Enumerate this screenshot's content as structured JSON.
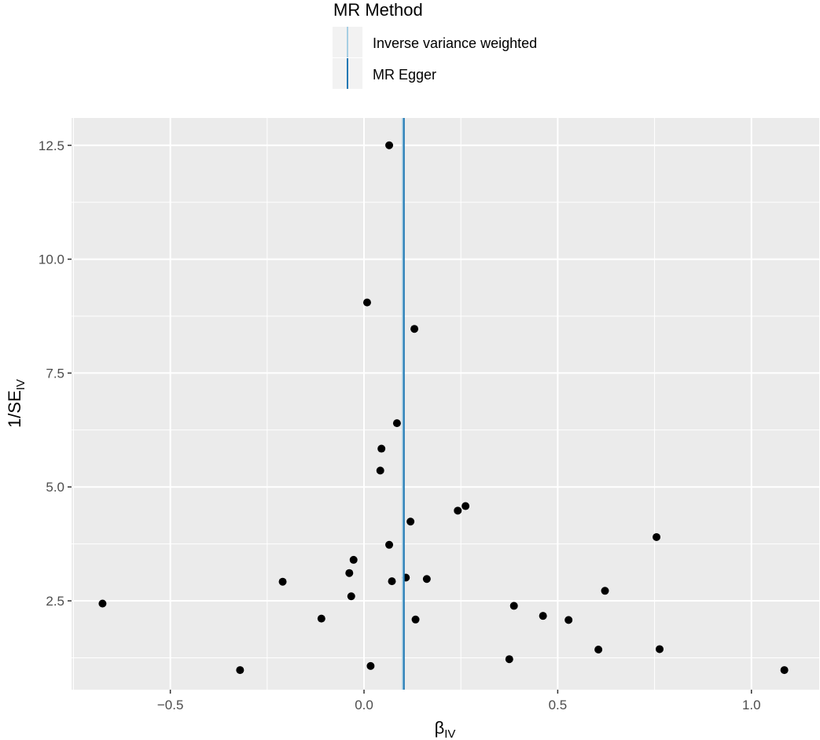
{
  "chart_data": {
    "type": "scatter",
    "title": "",
    "xlabel": "β",
    "xlabel_sub": "IV",
    "ylabel": "1/SE",
    "ylabel_sub": "IV",
    "xlim": [
      -0.755,
      1.175
    ],
    "ylim": [
      0.55,
      13.1
    ],
    "x_ticks": [
      -0.5,
      0.0,
      0.5,
      1.0
    ],
    "x_tick_labels": [
      "−0.5",
      "0.0",
      "0.5",
      "1.0"
    ],
    "y_ticks": [
      2.5,
      5.0,
      7.5,
      10.0,
      12.5
    ],
    "y_tick_labels": [
      "2.5",
      "5.0",
      "7.5",
      "10.0",
      "12.5"
    ],
    "grid": true,
    "panel_background": "#ebebeb",
    "point_color": "#000000",
    "points": [
      {
        "x": 0.065,
        "y": 12.5
      },
      {
        "x": 0.008,
        "y": 9.05
      },
      {
        "x": 0.13,
        "y": 8.47
      },
      {
        "x": 0.085,
        "y": 6.4
      },
      {
        "x": 0.045,
        "y": 5.84
      },
      {
        "x": 0.042,
        "y": 5.36
      },
      {
        "x": 0.262,
        "y": 4.58
      },
      {
        "x": 0.242,
        "y": 4.48
      },
      {
        "x": 0.12,
        "y": 4.24
      },
      {
        "x": 0.755,
        "y": 3.9
      },
      {
        "x": 0.065,
        "y": 3.73
      },
      {
        "x": -0.027,
        "y": 3.4
      },
      {
        "x": -0.038,
        "y": 3.11
      },
      {
        "x": 0.108,
        "y": 3.01
      },
      {
        "x": 0.162,
        "y": 2.98
      },
      {
        "x": 0.072,
        "y": 2.93
      },
      {
        "x": -0.21,
        "y": 2.92
      },
      {
        "x": 0.622,
        "y": 2.72
      },
      {
        "x": -0.033,
        "y": 2.6
      },
      {
        "x": -0.675,
        "y": 2.44
      },
      {
        "x": 0.387,
        "y": 2.39
      },
      {
        "x": 0.462,
        "y": 2.17
      },
      {
        "x": -0.11,
        "y": 2.11
      },
      {
        "x": 0.133,
        "y": 2.09
      },
      {
        "x": 0.528,
        "y": 2.08
      },
      {
        "x": 0.605,
        "y": 1.43
      },
      {
        "x": 0.763,
        "y": 1.44
      },
      {
        "x": 0.375,
        "y": 1.22
      },
      {
        "x": 0.017,
        "y": 1.07
      },
      {
        "x": -0.32,
        "y": 0.98
      },
      {
        "x": 1.085,
        "y": 0.98
      }
    ],
    "lines": [
      {
        "name": "Inverse variance weighted",
        "x": 0.102,
        "color": "#a6cee3"
      },
      {
        "name": "MR Egger",
        "x": 0.102,
        "color": "#1f78b4"
      }
    ],
    "legend": {
      "title": "MR Method",
      "position": "top",
      "key_background": "#f2f2f2",
      "entries": [
        "Inverse variance weighted",
        "MR Egger"
      ]
    }
  }
}
